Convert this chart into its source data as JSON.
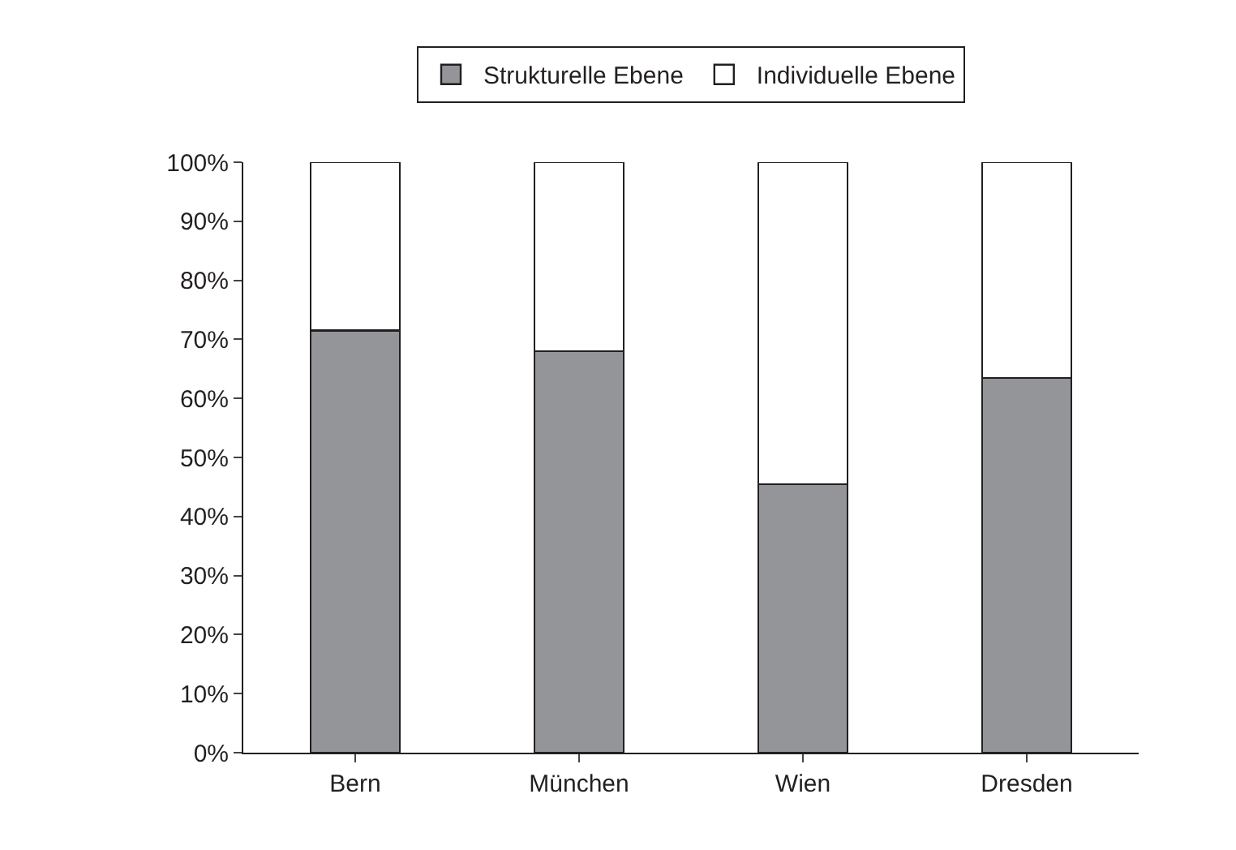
{
  "chart_data": {
    "type": "bar",
    "stacked": true,
    "categories": [
      "Bern",
      "München",
      "Wien",
      "Dresden"
    ],
    "series": [
      {
        "name": "Strukturelle Ebene",
        "color": "#939598",
        "values": [
          71.5,
          68,
          45.5,
          63.5
        ]
      },
      {
        "name": "Individuelle Ebene",
        "color": "#ffffff",
        "values": [
          28.5,
          32,
          54.5,
          36.5
        ]
      }
    ],
    "ylim": [
      0,
      100
    ],
    "yticks": [
      {
        "value": 0,
        "label": "0%"
      },
      {
        "value": 10,
        "label": "10%"
      },
      {
        "value": 20,
        "label": "20%"
      },
      {
        "value": 30,
        "label": "30%"
      },
      {
        "value": 40,
        "label": "40%"
      },
      {
        "value": 50,
        "label": "50%"
      },
      {
        "value": 60,
        "label": "60%"
      },
      {
        "value": 70,
        "label": "70%"
      },
      {
        "value": 80,
        "label": "80%"
      },
      {
        "value": 90,
        "label": "90%"
      },
      {
        "value": 100,
        "label": "100%"
      }
    ],
    "legend": "top"
  }
}
